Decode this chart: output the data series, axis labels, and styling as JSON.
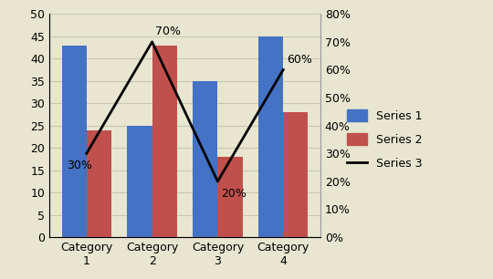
{
  "categories": [
    "Category\n1",
    "Category\n2",
    "Category\n3",
    "Category\n4"
  ],
  "series1": [
    43,
    25,
    35,
    45
  ],
  "series2": [
    24,
    43,
    18,
    28
  ],
  "series3": [
    0.3,
    0.7,
    0.2,
    0.6
  ],
  "series3_labels": [
    "30%",
    "70%",
    "20%",
    "60%"
  ],
  "series1_color": "#4472C4",
  "series2_color": "#C0504D",
  "series3_color": "#000000",
  "background_color": "#E8E6D0",
  "ylim_left": [
    0,
    50
  ],
  "ylim_right": [
    0,
    0.8
  ],
  "yticks_left": [
    0,
    5,
    10,
    15,
    20,
    25,
    30,
    35,
    40,
    45,
    50
  ],
  "yticks_right": [
    0.0,
    0.1,
    0.2,
    0.3,
    0.4,
    0.5,
    0.6,
    0.7,
    0.8
  ],
  "ytick_labels_right": [
    "0%",
    "10%",
    "20%",
    "30%",
    "40%",
    "50%",
    "60%",
    "70%",
    "80%"
  ],
  "legend_labels": [
    "Series 1",
    "Series 2",
    "Series 3"
  ],
  "bar_width": 0.38,
  "grid_color": "#C8C8B0",
  "label_fontsize": 9,
  "tick_fontsize": 9,
  "legend_fontsize": 9,
  "annot_fontsize": 9
}
